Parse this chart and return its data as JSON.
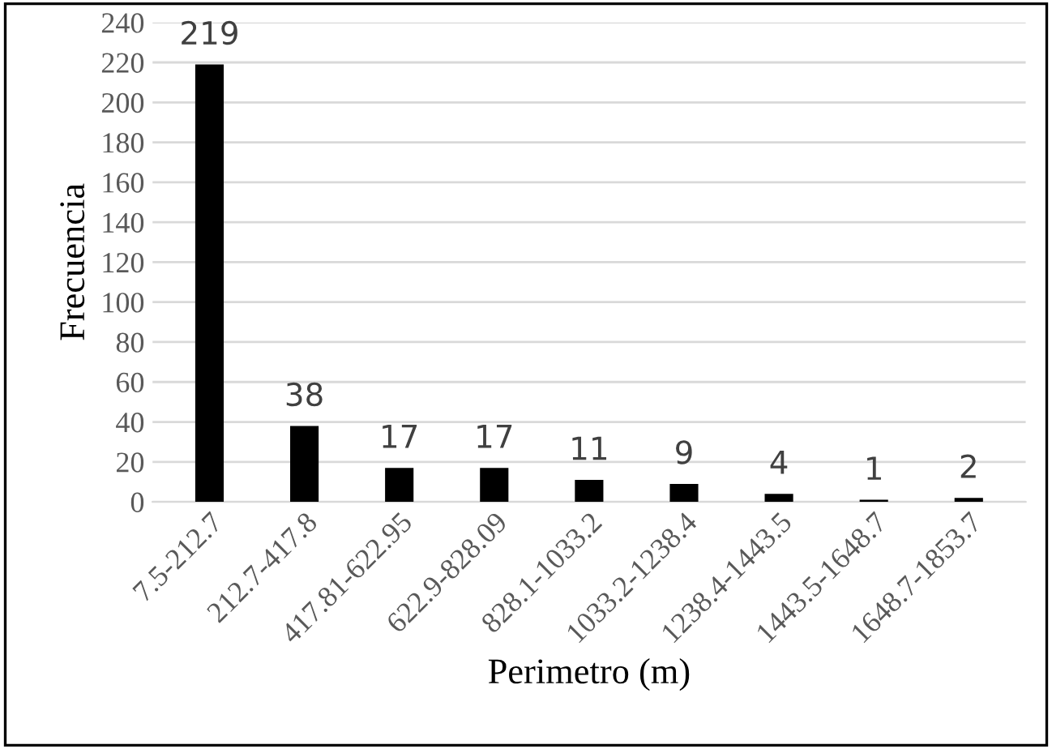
{
  "chart_data": {
    "type": "bar",
    "categories": [
      "7.5-212.7",
      "212.7-417.8",
      "417.81-622.95",
      "622.9-828.09",
      "828.1-1033.2",
      "1033.2-1238.4",
      "1238.4-1443.5",
      "1443.5-1648.7",
      "1648.7-1853.7"
    ],
    "values": [
      219,
      38,
      17,
      17,
      11,
      9,
      4,
      1,
      2
    ],
    "color": "#000000",
    "xlabel": "Perimetro (m)",
    "ylabel": "Frecuencia",
    "ylim": [
      0,
      240
    ],
    "yticks": [
      0,
      20,
      40,
      60,
      80,
      100,
      120,
      140,
      160,
      180,
      200,
      220,
      240
    ],
    "grid": "y",
    "data_labels": true
  }
}
